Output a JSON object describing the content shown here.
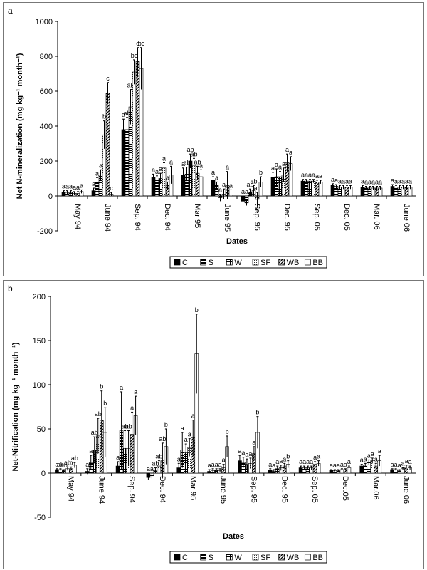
{
  "chart_data": [
    {
      "type": "bar",
      "panel_label": "a",
      "xlabel": "Dates",
      "ylabel": "Net N-mineralization (mg kg⁻¹ month⁻¹)",
      "ylim": [
        -200,
        1000
      ],
      "yticks": [
        -200,
        0,
        200,
        400,
        600,
        800,
        1000
      ],
      "categories": [
        "May 94",
        "June 94",
        "Sep. 94",
        "Dec. 94",
        "Mar 95",
        "June 95",
        "Sep. 95",
        "Dec. 95",
        "Sep. 05",
        "Dec. 05",
        "Mar. 06",
        "June 06"
      ],
      "legend": [
        "C",
        "S",
        "W",
        "SF",
        "WB",
        "BB"
      ],
      "legend_position": "bottom",
      "series": [
        {
          "name": "C",
          "values": [
            20,
            30,
            380,
            105,
            120,
            90,
            -30,
            105,
            85,
            60,
            50,
            55
          ],
          "errors": [
            10,
            15,
            60,
            20,
            40,
            20,
            20,
            30,
            10,
            10,
            10,
            10
          ]
        },
        {
          "name": "S",
          "values": [
            20,
            80,
            380,
            90,
            125,
            60,
            -40,
            110,
            85,
            55,
            45,
            50
          ],
          "errors": [
            10,
            25,
            70,
            25,
            40,
            20,
            15,
            45,
            10,
            10,
            10,
            10
          ]
        },
        {
          "name": "W",
          "values": [
            20,
            120,
            510,
            100,
            200,
            -10,
            20,
            110,
            85,
            50,
            45,
            50
          ],
          "errors": [
            10,
            30,
            100,
            30,
            40,
            20,
            20,
            30,
            10,
            10,
            10,
            10
          ]
        },
        {
          "name": "SF",
          "values": [
            15,
            350,
            710,
            160,
            175,
            10,
            30,
            120,
            85,
            50,
            45,
            50
          ],
          "errors": [
            10,
            80,
            70,
            30,
            40,
            30,
            30,
            40,
            10,
            10,
            10,
            10
          ]
        },
        {
          "name": "WB",
          "values": [
            15,
            590,
            770,
            60,
            130,
            60,
            -20,
            190,
            80,
            50,
            45,
            50
          ],
          "errors": [
            10,
            60,
            80,
            20,
            40,
            80,
            40,
            50,
            10,
            10,
            10,
            10
          ]
        },
        {
          "name": "BB",
          "values": [
            25,
            10,
            730,
            120,
            110,
            5,
            80,
            185,
            80,
            50,
            45,
            50
          ],
          "errors": [
            10,
            10,
            120,
            50,
            40,
            30,
            30,
            40,
            10,
            10,
            10,
            10
          ]
        }
      ],
      "significance": [
        [
          "a",
          "a",
          "a",
          "a",
          "a",
          "a"
        ],
        [
          "a",
          "a",
          "a",
          "b",
          "c",
          "c"
        ],
        [
          "a",
          "ab",
          "ab",
          "bc",
          "c",
          "bc"
        ],
        [
          "a",
          "a",
          "a",
          "a",
          "a",
          "a"
        ],
        [
          "a",
          "ab",
          "ab",
          "ab",
          "ab",
          "a"
        ],
        [
          "a",
          "a",
          "a",
          "a",
          "a",
          "a"
        ],
        [
          "a",
          "a",
          "ab",
          "ab",
          "ab",
          "b"
        ],
        [
          "a",
          "a",
          "a",
          "a",
          "a",
          "a"
        ],
        [
          "a",
          "a",
          "a",
          "a",
          "a",
          "a"
        ],
        [
          "a",
          "a",
          "a",
          "a",
          "a",
          "a"
        ],
        [
          "a",
          "a",
          "a",
          "a",
          "a",
          "a"
        ],
        [
          "a",
          "a",
          "a",
          "a",
          "a",
          "a"
        ]
      ]
    },
    {
      "type": "bar",
      "panel_label": "b",
      "xlabel": "Dates",
      "ylabel": "Net-Nitrification (mg kg⁻¹ month⁻¹)",
      "ylim": [
        -50,
        200
      ],
      "yticks": [
        -50,
        0,
        50,
        100,
        150,
        200
      ],
      "categories": [
        "May 94",
        "June 94",
        "Sep. 94",
        "Dec. 94",
        "Mar 95",
        "June 95",
        "Sep. 95",
        "Dec. 95",
        "Sep. 05",
        "Dec.05",
        "Mar.06",
        "June 06"
      ],
      "legend": [
        "C",
        "S",
        "W",
        "SF",
        "WB",
        "BB"
      ],
      "legend_position": "bottom",
      "series": [
        {
          "name": "C",
          "values": [
            4,
            2,
            8,
            -5,
            6,
            2,
            14,
            3,
            6,
            3,
            8,
            4
          ],
          "errors": [
            1,
            3,
            5,
            3,
            5,
            2,
            6,
            2,
            2,
            1,
            2,
            1
          ]
        },
        {
          "name": "S",
          "values": [
            4,
            12,
            48,
            -3,
            26,
            3,
            12,
            2,
            6,
            3,
            9,
            4
          ],
          "errors": [
            1,
            8,
            44,
            3,
            20,
            2,
            6,
            2,
            2,
            1,
            2,
            1
          ]
        },
        {
          "name": "W",
          "values": [
            3,
            26,
            28,
            3,
            23,
            3,
            10,
            5,
            6,
            3,
            12,
            3
          ],
          "errors": [
            1,
            15,
            20,
            3,
            10,
            2,
            6,
            3,
            2,
            1,
            3,
            1
          ]
        },
        {
          "name": "SF",
          "values": [
            5,
            42,
            28,
            8,
            29,
            3,
            11,
            6,
            6,
            4,
            14,
            5
          ],
          "errors": [
            2,
            20,
            20,
            6,
            10,
            2,
            6,
            3,
            2,
            1,
            3,
            1
          ]
        },
        {
          "name": "WB",
          "values": [
            5,
            60,
            44,
            14,
            40,
            6,
            22,
            8,
            10,
            4,
            8,
            7
          ],
          "errors": [
            2,
            33,
            25,
            20,
            20,
            4,
            8,
            3,
            3,
            1,
            3,
            2
          ]
        },
        {
          "name": "BB",
          "values": [
            9,
            46,
            65,
            30,
            135,
            30,
            46,
            10,
            11,
            6,
            14,
            6
          ],
          "errors": [
            3,
            28,
            22,
            20,
            45,
            12,
            18,
            4,
            3,
            2,
            6,
            2
          ]
        }
      ],
      "significance": [
        [
          "a",
          "ab",
          "ab",
          "ab",
          "b",
          "ab"
        ],
        [
          "a",
          "a",
          "ab",
          "ab",
          "b",
          "b"
        ],
        [
          "a",
          "a",
          "ab",
          "ab",
          "a",
          "a"
        ],
        [
          "a",
          "a",
          "ab",
          "ab",
          "ab",
          "b"
        ],
        [
          "a",
          "a",
          "a",
          "a",
          "a",
          "b"
        ],
        [
          "a",
          "a",
          "a",
          "a",
          "a",
          "b"
        ],
        [
          "a",
          "a",
          "a",
          "a",
          "a",
          "b"
        ],
        [
          "a",
          "a",
          "a",
          "a",
          "a",
          "b"
        ],
        [
          "a",
          "a",
          "a",
          "a",
          "a",
          "a"
        ],
        [
          "a",
          "a",
          "a",
          "a",
          "a",
          "a"
        ],
        [
          "a",
          "a",
          "a",
          "a",
          "a",
          "a"
        ],
        [
          "a",
          "a",
          "a",
          "a",
          "a",
          "a"
        ]
      ]
    }
  ],
  "styles": {
    "C": "solid-black",
    "S": "horizontal-stripes",
    "W": "grid",
    "SF": "dots",
    "WB": "diagonal-stripes",
    "BB": "white"
  }
}
